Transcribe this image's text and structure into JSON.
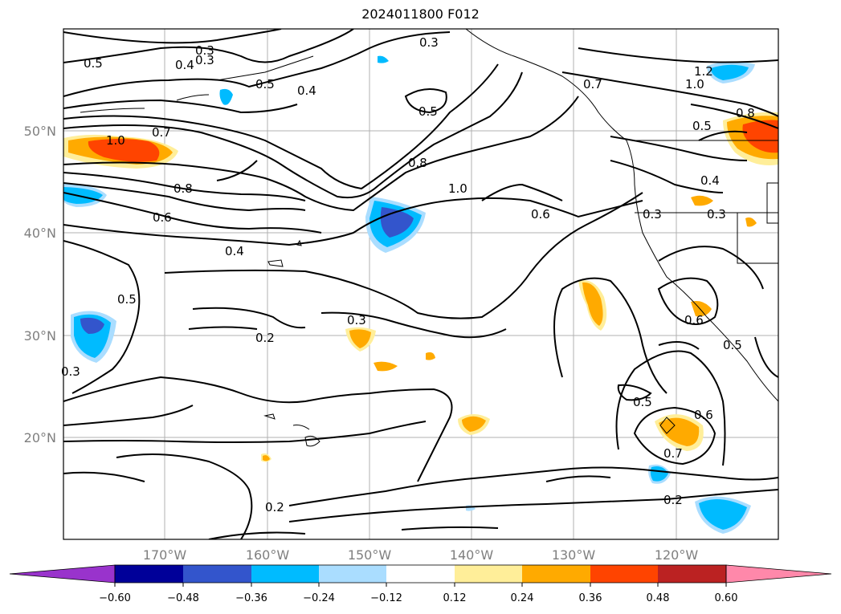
{
  "title": "2024011800 F012",
  "map": {
    "lon_labels": [
      "170°W",
      "160°W",
      "150°W",
      "140°W",
      "130°W",
      "120°W"
    ],
    "lat_labels": [
      "50°N",
      "40°N",
      "30°N",
      "20°N"
    ],
    "contour_labels": [
      {
        "text": "0.5"
      },
      {
        "text": "0.4"
      },
      {
        "text": "0.3"
      },
      {
        "text": "0.3"
      },
      {
        "text": "0.5"
      },
      {
        "text": "0.4"
      },
      {
        "text": "0.3"
      },
      {
        "text": "0.5"
      },
      {
        "text": "0.7"
      },
      {
        "text": "1.2"
      },
      {
        "text": "1.0"
      },
      {
        "text": "0.8"
      },
      {
        "text": "0.5"
      },
      {
        "text": "0.7"
      },
      {
        "text": "1.0"
      },
      {
        "text": "0.8"
      },
      {
        "text": "0.6"
      },
      {
        "text": "0.8"
      },
      {
        "text": "1.0"
      },
      {
        "text": "0.6"
      },
      {
        "text": "0.4"
      },
      {
        "text": "0.3"
      },
      {
        "text": "0.3"
      },
      {
        "text": "0.5"
      },
      {
        "text": "0.3"
      },
      {
        "text": "0.2"
      },
      {
        "text": "0.6"
      },
      {
        "text": "0.5"
      },
      {
        "text": "0.6"
      },
      {
        "text": "0.7"
      },
      {
        "text": "0.2"
      },
      {
        "text": "0.2"
      },
      {
        "text": "0.3"
      },
      {
        "text": "0.5"
      },
      {
        "text": "0.4"
      }
    ]
  },
  "colorbar": {
    "ticks": [
      "−0.60",
      "−0.48",
      "−0.36",
      "−0.24",
      "−0.12",
      "0.12",
      "0.24",
      "0.36",
      "0.48",
      "0.60"
    ],
    "colors": [
      "#9933cc",
      "#000099",
      "#3355cc",
      "#00bbff",
      "#aaddff",
      "#ffffff",
      "#ffee99",
      "#ffaa00",
      "#ff4400",
      "#bb2222",
      "#ff88aa"
    ]
  }
}
